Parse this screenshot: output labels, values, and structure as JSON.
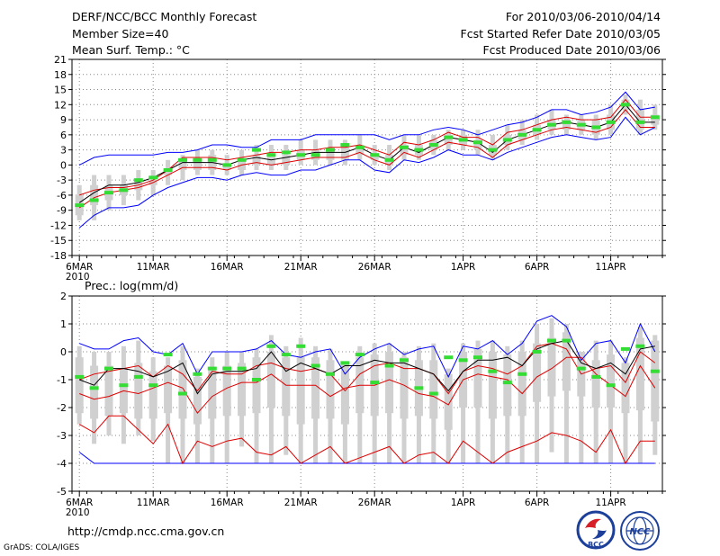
{
  "header": {
    "title": "DERF/NCC/BCC Monthly Forecast",
    "member_size": "Member Size=40",
    "variable": "Mean Surf. Temp.: °C",
    "period": "For 2010/03/06-2010/04/14",
    "started": "Fcst Started Refer Date 2010/03/05",
    "produced": "Fcst Produced Date 2010/03/06"
  },
  "footer": {
    "url": "http://cmdp.ncc.cma.gov.cn",
    "grads": "GrADS: COLA/IGES",
    "logo_left": "BCC",
    "logo_right": "NCC"
  },
  "colors": {
    "envelope": "#0000ff",
    "quantile": "#dd0000",
    "median": "#000000",
    "mean_marker": "#33dd33",
    "box": "#d0d0d0"
  },
  "chart_data": [
    {
      "type": "box-line",
      "title": "Mean Surf. Temp.: °C",
      "xlabel": "",
      "ylabel": "",
      "ylim": [
        -18,
        21
      ],
      "yticks": [
        -18,
        -15,
        -12,
        -9,
        -6,
        -3,
        0,
        3,
        6,
        9,
        12,
        15,
        18,
        21
      ],
      "xlim": [
        0,
        40
      ],
      "xticks": [
        {
          "x": 0.5,
          "label": "6MAR",
          "sub": "2010"
        },
        {
          "x": 5.5,
          "label": "11MAR"
        },
        {
          "x": 10.5,
          "label": "16MAR"
        },
        {
          "x": 15.5,
          "label": "21MAR"
        },
        {
          "x": 20.5,
          "label": "26MAR"
        },
        {
          "x": 26.5,
          "label": "1APR"
        },
        {
          "x": 31.5,
          "label": "6APR"
        },
        {
          "x": 36.5,
          "label": "11APR"
        }
      ],
      "series": {
        "max": [
          0,
          1.5,
          2,
          2,
          2,
          2,
          2.5,
          2.5,
          3,
          4,
          4,
          3.5,
          3.5,
          5,
          5,
          5,
          6,
          6,
          6,
          6,
          6,
          5,
          6,
          6,
          7,
          7.5,
          7,
          6,
          7,
          8,
          8.5,
          9.5,
          11,
          11,
          10,
          10.5,
          11.5,
          14.5,
          11,
          11.5
        ],
        "q_high": [
          -6,
          -5,
          -4.5,
          -4.5,
          -4,
          -3,
          -1,
          1.5,
          1.5,
          1.5,
          1,
          1.5,
          2,
          2.5,
          2.5,
          3,
          3,
          3.5,
          3.5,
          4,
          3,
          2,
          4.5,
          4,
          5,
          6.5,
          5.5,
          5.5,
          4,
          6.5,
          7,
          8,
          9,
          9.5,
          9,
          9,
          9.5,
          13,
          9.5,
          9.5
        ],
        "median": [
          -7.5,
          -5.5,
          -4,
          -4,
          -3.5,
          -2.5,
          -1,
          0.5,
          0.5,
          0.5,
          0,
          1,
          1.5,
          1,
          1.5,
          2,
          2.5,
          2.5,
          2.5,
          3.5,
          2,
          1,
          3.5,
          2.5,
          4,
          5.5,
          5,
          4.5,
          2.5,
          5,
          6,
          7,
          8,
          8.5,
          8,
          7.5,
          8.5,
          12,
          8.5,
          8.5
        ],
        "q_low": [
          -8.5,
          -6.5,
          -5.5,
          -5,
          -4.5,
          -3.5,
          -2,
          -0.5,
          -0.5,
          -0.5,
          -1,
          0,
          0.5,
          0,
          0.5,
          1,
          1.5,
          1.5,
          1.5,
          2.5,
          1,
          0,
          2.5,
          1.5,
          3,
          4.5,
          4,
          3.5,
          1.5,
          4,
          5,
          6,
          7,
          7.5,
          7,
          6.5,
          7.5,
          11,
          7.5,
          7.5
        ],
        "min": [
          -12.5,
          -10,
          -8.5,
          -8.5,
          -8,
          -6,
          -4.5,
          -3.5,
          -2.5,
          -2.5,
          -3,
          -2,
          -1.5,
          -2,
          -2,
          -1,
          -1,
          0,
          1,
          1,
          -1,
          -1.5,
          1,
          0.5,
          1.5,
          3,
          2,
          2,
          1,
          2.5,
          3.5,
          4.5,
          5.5,
          6,
          5.5,
          5,
          5.5,
          9.5,
          6,
          7.5
        ],
        "box_high": [
          -6,
          -4,
          -4,
          -4,
          -3,
          -3,
          -1,
          1,
          1,
          2,
          0,
          1,
          2,
          2,
          2,
          3,
          3,
          3,
          4,
          4,
          2,
          2,
          4,
          4,
          5,
          6,
          6,
          5,
          4,
          6,
          7,
          8,
          9,
          9,
          9,
          9,
          10,
          13,
          11,
          10
        ],
        "box_low": [
          -10,
          -8,
          -7,
          -6,
          -5,
          -4,
          -2,
          -1,
          -1,
          -1,
          -1,
          -1,
          0,
          0,
          0,
          1,
          1,
          1,
          1,
          2,
          1,
          0,
          2,
          2,
          3,
          4,
          4,
          3,
          2,
          4,
          5,
          6,
          7,
          7,
          7,
          6,
          7,
          11,
          7,
          8
        ],
        "whisk_high": [
          -4,
          -2,
          -2,
          -2,
          -1,
          -1,
          1,
          2,
          3,
          3,
          2,
          3,
          4,
          4,
          4,
          5,
          5,
          5,
          5,
          6,
          4,
          4,
          6,
          6,
          6,
          7,
          7,
          7,
          6,
          8,
          9,
          10,
          11,
          10,
          10,
          10,
          12,
          14,
          13,
          12
        ],
        "whisk_low": [
          -11,
          -11,
          -9,
          -8,
          -7,
          -6,
          -4,
          -3,
          -2,
          -2,
          -2,
          -2,
          -1,
          -1,
          -1,
          0,
          0,
          0,
          0,
          1,
          0,
          -1,
          1,
          1,
          2,
          3,
          3,
          2,
          1,
          3,
          4,
          5,
          6,
          6,
          6,
          5,
          6,
          10,
          6,
          7
        ],
        "mean_marker": [
          -8,
          -7,
          -5.5,
          -5,
          -3,
          -2.5,
          -1,
          1,
          1,
          1,
          0,
          1,
          3,
          2,
          2.5,
          2,
          2,
          3,
          4,
          3.5,
          2,
          1,
          3.5,
          3,
          4,
          5.5,
          5,
          4.5,
          3,
          5,
          6,
          7,
          8,
          8.5,
          8,
          7.5,
          8.5,
          12,
          8.5,
          9.5
        ]
      }
    },
    {
      "type": "box-line",
      "title": "Prec.: log(mm/d)",
      "xlabel": "",
      "ylabel": "",
      "ylim": [
        -5,
        2
      ],
      "yticks": [
        -5,
        -4,
        -3,
        -2,
        -1,
        0,
        1,
        2
      ],
      "xlim": [
        0,
        40
      ],
      "xticks": [
        {
          "x": 0.5,
          "label": "6MAR",
          "sub": "2010"
        },
        {
          "x": 5.5,
          "label": "11MAR"
        },
        {
          "x": 10.5,
          "label": "16MAR"
        },
        {
          "x": 15.5,
          "label": "21MAR"
        },
        {
          "x": 20.5,
          "label": "26MAR"
        },
        {
          "x": 26.5,
          "label": "1APR"
        },
        {
          "x": 31.5,
          "label": "6APR"
        },
        {
          "x": 36.5,
          "label": "11APR"
        }
      ],
      "series": {
        "max": [
          0.3,
          0.1,
          0.1,
          0.4,
          0.5,
          0,
          -0.1,
          0.3,
          -0.8,
          0,
          0,
          0,
          0.1,
          0.4,
          -0.1,
          -0.2,
          0,
          0.1,
          -0.8,
          -0.2,
          0.1,
          0.3,
          -0.1,
          0.1,
          0.2,
          -0.9,
          0.2,
          0.1,
          0.4,
          -0.1,
          0.3,
          1.1,
          1.3,
          0.9,
          -0.3,
          0.3,
          0.4,
          -0.4,
          1,
          0
        ],
        "q_high": [
          -1,
          -0.8,
          -0.7,
          -0.6,
          -0.5,
          -0.9,
          -0.5,
          -0.8,
          -1.4,
          -0.7,
          -0.8,
          -0.8,
          -0.5,
          -0.4,
          -0.6,
          -0.7,
          -0.6,
          -0.8,
          -1.4,
          -0.8,
          -0.5,
          -0.4,
          -0.6,
          -0.6,
          -0.8,
          -1.5,
          -0.7,
          -0.5,
          -0.6,
          -0.8,
          -0.5,
          0.2,
          0.3,
          0.1,
          -0.8,
          -0.6,
          -0.5,
          -1.1,
          0,
          -0.4
        ],
        "median": [
          -1,
          -1.2,
          -0.6,
          -0.6,
          -0.7,
          -0.9,
          -0.7,
          -0.4,
          -1.5,
          -0.8,
          -0.7,
          -0.7,
          -0.6,
          0,
          -0.7,
          -0.4,
          -0.6,
          -0.8,
          -0.5,
          -0.5,
          -0.3,
          -0.4,
          -0.4,
          -0.6,
          -0.8,
          -1.4,
          -0.7,
          -0.3,
          -0.3,
          -0.2,
          -0.5,
          0.1,
          0.3,
          0.4,
          -0.4,
          -0.6,
          -0.4,
          -0.8,
          0.1,
          0.2
        ],
        "q_low": [
          -1.5,
          -1.7,
          -1.6,
          -1.4,
          -1.5,
          -1.3,
          -1.1,
          -1.3,
          -2.2,
          -1.6,
          -1.3,
          -1.1,
          -1.1,
          -0.8,
          -1.2,
          -1.2,
          -1.2,
          -1.6,
          -1.3,
          -1.2,
          -1.2,
          -1.0,
          -1.2,
          -1.5,
          -1.6,
          -1.9,
          -1.0,
          -0.8,
          -0.9,
          -1.0,
          -1.5,
          -0.9,
          -0.6,
          -0.2,
          -0.2,
          -0.8,
          -1.2,
          -1.6,
          -0.5,
          -1.3
        ],
        "min": [
          -2.6,
          -2.9,
          -2.3,
          -2.3,
          -2.8,
          -3.3,
          -2.6,
          -4,
          -3.2,
          -3.4,
          -3.2,
          -3.1,
          -3.6,
          -3.7,
          -3.4,
          -4,
          -3.7,
          -3.4,
          -4,
          -3.8,
          -3.6,
          -3.4,
          -4,
          -3.7,
          -3.6,
          -4,
          -3.2,
          -3.6,
          -4,
          -3.6,
          -3.4,
          -3.2,
          -2.9,
          -3.0,
          -3.2,
          -3.6,
          -2.8,
          -4,
          -3.2,
          -3.2
        ],
        "envelope_low": [
          -3.6,
          -4,
          -4,
          -4,
          -4,
          -4,
          -4,
          -4,
          -4,
          -4,
          -4,
          -4,
          -4,
          -4,
          -4,
          -4,
          -4,
          -4,
          -4,
          -4,
          -4,
          -4,
          -4,
          -4,
          -4,
          -4,
          -4,
          -4,
          -4,
          -4,
          -4,
          -4,
          -4,
          -4,
          -4,
          -4,
          -4,
          -4,
          -4,
          -4
        ],
        "box_high": [
          -0.2,
          -0.5,
          -0.5,
          -0.6,
          -0.4,
          -0.7,
          -0.5,
          -0.3,
          -0.9,
          -0.6,
          -0.5,
          -0.4,
          -0.2,
          0,
          -0.2,
          -0.2,
          -0.2,
          -0.3,
          -0.4,
          -0.2,
          -0.1,
          0,
          -0.2,
          -0.3,
          -0.3,
          -0.8,
          0,
          0.1,
          0,
          -0.1,
          0,
          0.3,
          0.5,
          0.7,
          0,
          -0.3,
          -0.1,
          -0.4,
          0.5,
          0.4
        ],
        "box_low": [
          -2.2,
          -2.4,
          -2.3,
          -2.2,
          -2.4,
          -2.4,
          -2.2,
          -2.4,
          -2.6,
          -2.4,
          -2.3,
          -2.3,
          -2.2,
          -2.0,
          -2.3,
          -2.6,
          -2.4,
          -2.4,
          -2.6,
          -2.2,
          -2.3,
          -2.2,
          -2.4,
          -2.3,
          -2.4,
          -2.8,
          -2.0,
          -2.0,
          -2.4,
          -2.3,
          -2.3,
          -1.8,
          -1.6,
          -1.4,
          -1.6,
          -2.0,
          -2.0,
          -2.2,
          -2.1,
          -2.5
        ],
        "whisk_high": [
          0.2,
          0,
          0,
          0.2,
          0.4,
          -0.2,
          -0.2,
          0.2,
          -0.6,
          -0.2,
          0,
          0,
          0.1,
          0.6,
          0.2,
          0.5,
          0.2,
          0.1,
          -0.6,
          0.2,
          0.3,
          0.3,
          0,
          0.2,
          0.3,
          -0.6,
          0.3,
          0.4,
          0.4,
          0.2,
          0.4,
          1.0,
          1.2,
          1.0,
          0,
          0.4,
          0.4,
          -0.2,
          0.9,
          0.6
        ],
        "whisk_low": [
          -2.6,
          -3.3,
          -3.0,
          -3.3,
          -3.0,
          -3.2,
          -4,
          -4,
          -4,
          -4,
          -4,
          -3.4,
          -4,
          -4,
          -3.7,
          -4,
          -4,
          -4,
          -4,
          -4,
          -4,
          -4,
          -4,
          -4,
          -4,
          -4,
          -4,
          -4,
          -4,
          -4,
          -4,
          -4,
          -3.6,
          -4,
          -4,
          -4,
          -4,
          -4,
          -4,
          -3.7
        ],
        "mean_marker": [
          -0.9,
          -1.3,
          -0.6,
          -1.2,
          -0.9,
          -1.2,
          -0.1,
          -1.5,
          -0.8,
          -0.6,
          -0.6,
          -0.6,
          -1.0,
          0.2,
          -0.1,
          0.2,
          -0.5,
          -0.8,
          -0.4,
          -0.1,
          -1.1,
          -0.5,
          -0.3,
          -1.3,
          -1.5,
          -0.2,
          -0.3,
          -0.2,
          -0.7,
          -1.1,
          -0.8,
          0.0,
          0.4,
          0.4,
          -0.6,
          -0.9,
          -1.2,
          0.1,
          0.2,
          -0.7
        ]
      }
    }
  ]
}
